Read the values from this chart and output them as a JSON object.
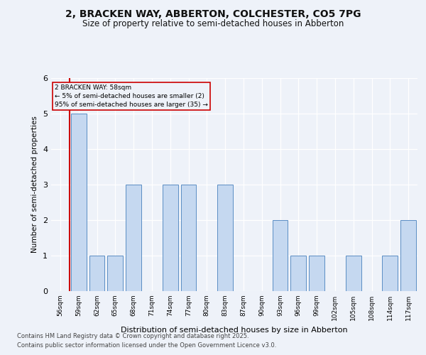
{
  "title_line1": "2, BRACKEN WAY, ABBERTON, COLCHESTER, CO5 7PG",
  "title_line2": "Size of property relative to semi-detached houses in Abberton",
  "xlabel": "Distribution of semi-detached houses by size in Abberton",
  "ylabel": "Number of semi-detached properties",
  "footer_line1": "Contains HM Land Registry data © Crown copyright and database right 2025.",
  "footer_line2": "Contains public sector information licensed under the Open Government Licence v3.0.",
  "bins": [
    "56sqm",
    "59sqm",
    "62sqm",
    "65sqm",
    "68sqm",
    "71sqm",
    "74sqm",
    "77sqm",
    "80sqm",
    "83sqm",
    "87sqm",
    "90sqm",
    "93sqm",
    "96sqm",
    "99sqm",
    "102sqm",
    "105sqm",
    "108sqm",
    "114sqm",
    "117sqm"
  ],
  "values": [
    0,
    5,
    1,
    1,
    3,
    0,
    3,
    3,
    0,
    3,
    0,
    0,
    2,
    1,
    1,
    0,
    1,
    0,
    1,
    2
  ],
  "bar_color": "#c5d8f0",
  "bar_edge_color": "#5b8ec4",
  "annotation_title": "2 BRACKEN WAY: 58sqm",
  "annotation_line1": "← 5% of semi-detached houses are smaller (2)",
  "annotation_line2": "95% of semi-detached houses are larger (35) →",
  "subject_line_color": "#cc0000",
  "ylim": [
    0,
    6
  ],
  "yticks": [
    0,
    1,
    2,
    3,
    4,
    5,
    6
  ],
  "background_color": "#eef2f9"
}
